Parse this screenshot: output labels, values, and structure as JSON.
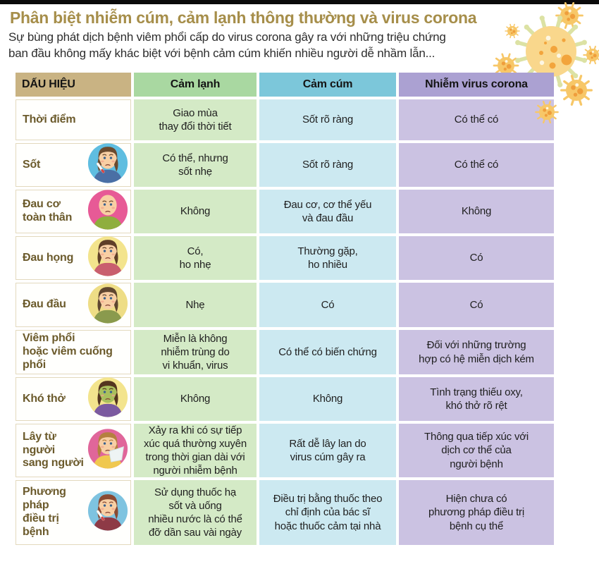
{
  "header": {
    "title": "Phân biệt nhiễm cúm, cảm lạnh thông thường và virus corona",
    "subtitle": "Sự bùng phát dịch bệnh viêm phổi cấp do virus corona gây ra với những triệu chứng\nban đầu không mấy khác biệt với bệnh cảm cúm khiến nhiều người dễ nhầm lẫn...",
    "title_color": "#a68e4a",
    "text_color": "#2d2d2d"
  },
  "decor": {
    "top_bar_color": "#0a0a0a",
    "virus_illustration": {
      "name": "coronavirus-illustration",
      "body_color": "#f9d78c",
      "spot_color": "#f2a43c",
      "white_spot_color": "#fdf6e3",
      "spike_color": "#dce2a4",
      "satellite_body_color": "#f7c768",
      "satellite_spot_color": "#ef9e3c"
    }
  },
  "table": {
    "label_color": "#6b5a2b",
    "columns": [
      {
        "key": "sign",
        "label": "DẤU HIỆU",
        "header_bg": "#c9b383",
        "cell_bg": "#fffffd"
      },
      {
        "key": "cold",
        "label": "Cảm lạnh",
        "header_bg": "#a9d8a1",
        "cell_bg": "#d4eac6"
      },
      {
        "key": "flu",
        "label": "Cảm cúm",
        "header_bg": "#7cc7da",
        "cell_bg": "#cce9f1"
      },
      {
        "key": "corona",
        "label": "Nhiễm virus corona",
        "header_bg": "#aba1d2",
        "cell_bg": "#cbc2e2"
      }
    ],
    "rows": [
      {
        "sign": "Thời điểm",
        "icon": null,
        "cold": "Giao mùa\nthay đổi thời tiết",
        "flu": "Sốt rõ ràng",
        "corona": "Có thể có"
      },
      {
        "sign": "Sốt",
        "icon": {
          "name": "fever-girl-icon",
          "bg": "#5fbde0",
          "skin": "#f8cfa4",
          "hair": "#6b4a2e",
          "shirt": "#4a6fa5",
          "extra": "thermometer"
        },
        "cold": "Có thể, nhưng\nsốt nhẹ",
        "flu": "Sốt rõ ràng",
        "corona": "Có thể có"
      },
      {
        "sign": "Đau cơ\ntoàn thân",
        "icon": {
          "name": "body-ache-man-icon",
          "bg": "#e75a96",
          "skin": "#f8cfa4",
          "hair": null,
          "shirt": "#8fae3e",
          "extra": null
        },
        "cold": "Không",
        "flu": "Đau cơ, cơ thể yếu\nvà đau đầu",
        "corona": "Không"
      },
      {
        "sign": "Đau họng",
        "icon": {
          "name": "sore-throat-icon",
          "bg": "#f3e48d",
          "skin": "#f8cfa4",
          "hair": "#5f3f28",
          "shirt": "#c95f6e",
          "extra": null
        },
        "cold": "Có,\nho nhẹ",
        "flu": "Thường gặp,\nho nhiều",
        "corona": "Có"
      },
      {
        "sign": "Đau đầu",
        "icon": {
          "name": "headache-woman-icon",
          "bg": "#eedd86",
          "skin": "#f8cfa4",
          "hair": "#5f4630",
          "shirt": "#8a9a4d",
          "extra": null
        },
        "cold": "Nhẹ",
        "flu": "Có",
        "corona": "Có"
      },
      {
        "sign": "Viêm phổi\nhoặc viêm cuống\nphổi",
        "icon": null,
        "cold": "Miễn là không\nnhiễm trùng do\nvi khuẩn, virus",
        "flu": "Có thể có biến chứng",
        "corona": "Đối với những trường\nhợp có hệ miễn dịch kém"
      },
      {
        "sign": "Khó thở",
        "icon": {
          "name": "breathless-green-face-icon",
          "bg": "#f3e48d",
          "skin": "#a9c05d",
          "hair": "#54351f",
          "shirt": "#7b5aa0",
          "extra": null
        },
        "cold": "Không",
        "flu": "Không",
        "corona": "Tình trạng thiếu oxy,\nkhó thở rõ rệt"
      },
      {
        "sign": "Lây từ người\nsang người",
        "icon": {
          "name": "sneezing-person-icon",
          "bg": "#e0669a",
          "skin": "#f8cfa4",
          "hair": "#b5803f",
          "shirt": "#f0c84f",
          "extra": "tissue"
        },
        "cold": "Xảy ra khi có sự tiếp\nxúc quá thường xuyên\ntrong thời gian dài với\nngười nhiễm bệnh",
        "flu": "Rất dễ lây lan do\nvirus cúm gây ra",
        "corona": "Thông qua tiếp xúc với\ndịch cơ thể của\nngười bệnh"
      },
      {
        "sign": "Phương pháp\nđiều trị\nbệnh",
        "icon": {
          "name": "sick-woman-icon",
          "bg": "#7ec3e0",
          "skin": "#f8cfa4",
          "hair": "#8a4a33",
          "shirt": "#8e3a46",
          "extra": "thermometer"
        },
        "cold": "Sử dụng thuốc hạ\nsốt và uống\nnhiều nước là có thể\nđỡ dần sau vài ngày",
        "flu": "Điều trị bằng thuốc theo\nchỉ định của bác sĩ\nhoặc thuốc cảm tại nhà",
        "corona": "Hiện chưa có\nphương pháp điều trị\nbệnh cụ thể"
      }
    ]
  }
}
